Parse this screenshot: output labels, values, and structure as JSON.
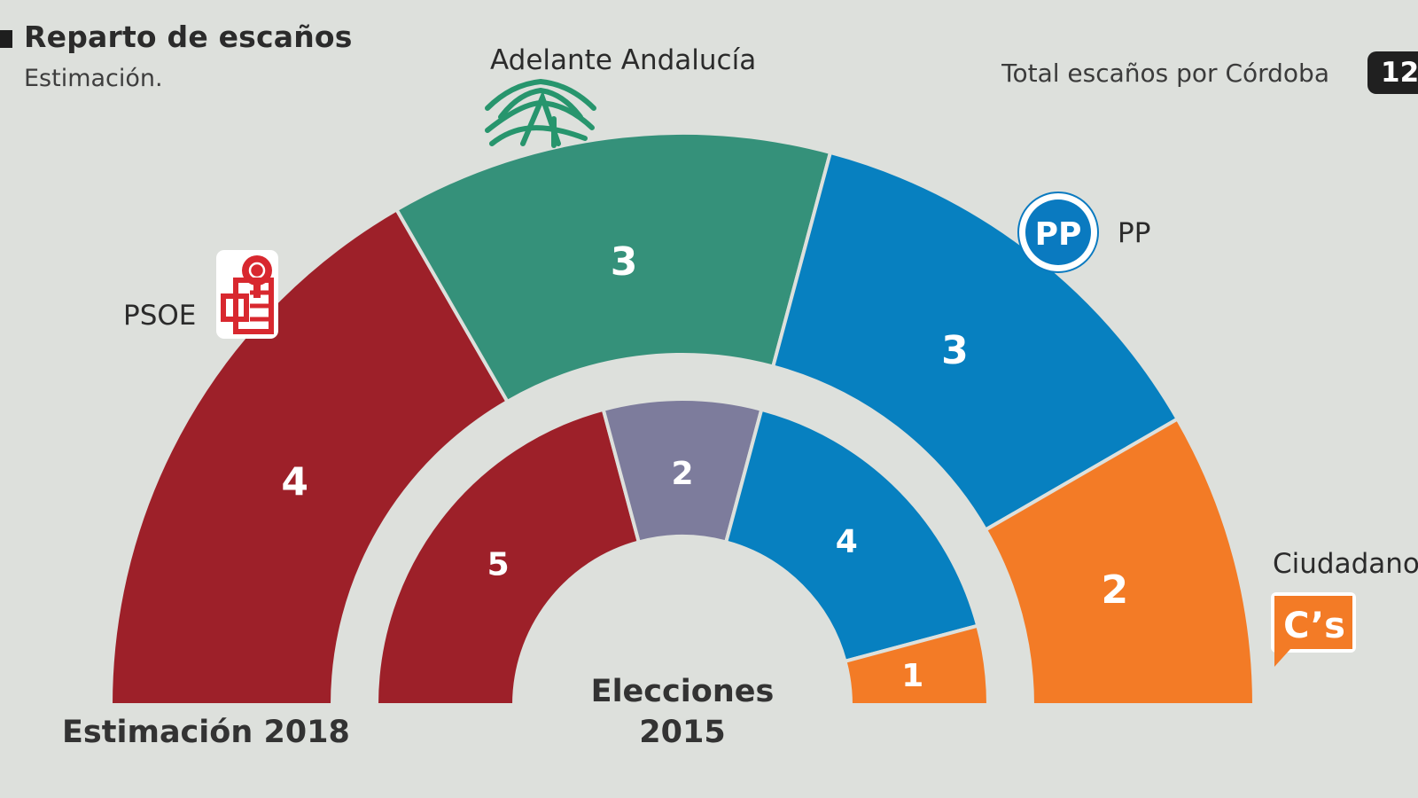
{
  "header": {
    "title": "Reparto de escaños",
    "subtitle": "Estimación.",
    "total_label": "Total escaños por Córdoba",
    "total_value": "12"
  },
  "party_labels": {
    "psoe": "PSOE",
    "adelante": "Adelante Andalucía",
    "pp": "PP",
    "cs": "Ciudadanos",
    "cs_logo": "C’s",
    "pp_logo": "PP"
  },
  "ring_labels": {
    "outer": "Estimación 2018",
    "inner_line1": "Elecciones",
    "inner_line2": "2015"
  },
  "chart_data": [
    {
      "type": "pie",
      "variant": "half-donut",
      "ring": "outer",
      "name": "Estimación 2018",
      "categories": [
        "PSOE",
        "Adelante Andalucía",
        "PP",
        "Ciudadanos"
      ],
      "values": [
        4,
        3,
        3,
        2
      ],
      "colors": [
        "#9d2029",
        "#35917a",
        "#0780c0",
        "#f37b26"
      ]
    },
    {
      "type": "pie",
      "variant": "half-donut",
      "ring": "inner",
      "name": "Elecciones 2015",
      "categories": [
        "PSOE",
        "",
        "PP",
        "Ciudadanos"
      ],
      "values": [
        5,
        2,
        4,
        1
      ],
      "colors": [
        "#9d2029",
        "#7d7c9c",
        "#0780c0",
        "#f37b26"
      ]
    }
  ]
}
